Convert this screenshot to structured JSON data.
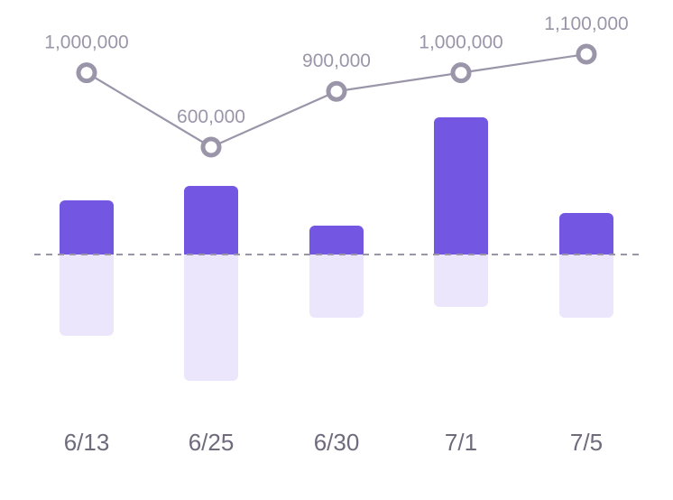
{
  "chart_data": {
    "type": "bar",
    "categories": [
      "6/13",
      "6/25",
      "6/30",
      "7/1",
      "7/5"
    ],
    "series": [
      {
        "kind": "bar-positive",
        "values": [
          60,
          76,
          32,
          152,
          46
        ],
        "color": "#7357e2"
      },
      {
        "kind": "bar-negative",
        "values": [
          -90,
          -140,
          -70,
          -58,
          -70
        ],
        "color": "#ebe6fb"
      },
      {
        "kind": "line",
        "values": [
          1000000,
          600000,
          900000,
          1000000,
          1100000
        ],
        "labels": [
          "1,000,000",
          "600,000",
          "900,000",
          "1,000,000",
          "1,100,000"
        ],
        "color": "#9a95a8"
      }
    ],
    "baseline_style": "dashed",
    "baseline_color": "#9a95a8",
    "grid": false,
    "legend": "none"
  }
}
